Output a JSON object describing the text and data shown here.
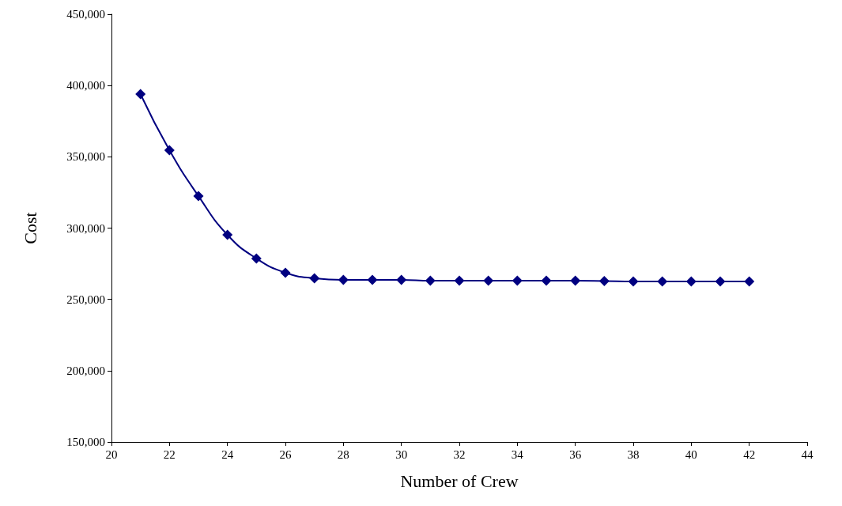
{
  "chart_data": {
    "type": "line",
    "xlabel": "Number of Crew",
    "ylabel": "Cost",
    "x": [
      21,
      22,
      23,
      24,
      25,
      26,
      27,
      28,
      29,
      30,
      31,
      32,
      33,
      34,
      35,
      36,
      37,
      38,
      39,
      40,
      41,
      42
    ],
    "series": [
      {
        "color": "#000080",
        "values": [
          394000,
          354600,
          322500,
          295300,
          278700,
          268700,
          264800,
          263700,
          263700,
          263700,
          263100,
          263100,
          263100,
          263100,
          263100,
          263100,
          262900,
          262600,
          262600,
          262600,
          262600,
          262600
        ]
      }
    ],
    "xlim": [
      20,
      44
    ],
    "xticks": [
      20,
      22,
      24,
      26,
      28,
      30,
      32,
      34,
      36,
      38,
      40,
      42,
      44
    ],
    "ylim": [
      150000,
      450000
    ],
    "yticks": [
      {
        "value": 150000,
        "label": "150,000"
      },
      {
        "value": 200000,
        "label": "200,000"
      },
      {
        "value": 250000,
        "label": "250,000"
      },
      {
        "value": 300000,
        "label": "300,000"
      },
      {
        "value": 350000,
        "label": "350,000"
      },
      {
        "value": 400000,
        "label": "400,000"
      },
      {
        "value": 450000,
        "label": "450,000"
      }
    ],
    "marker": "diamond",
    "line_style": "solid"
  }
}
